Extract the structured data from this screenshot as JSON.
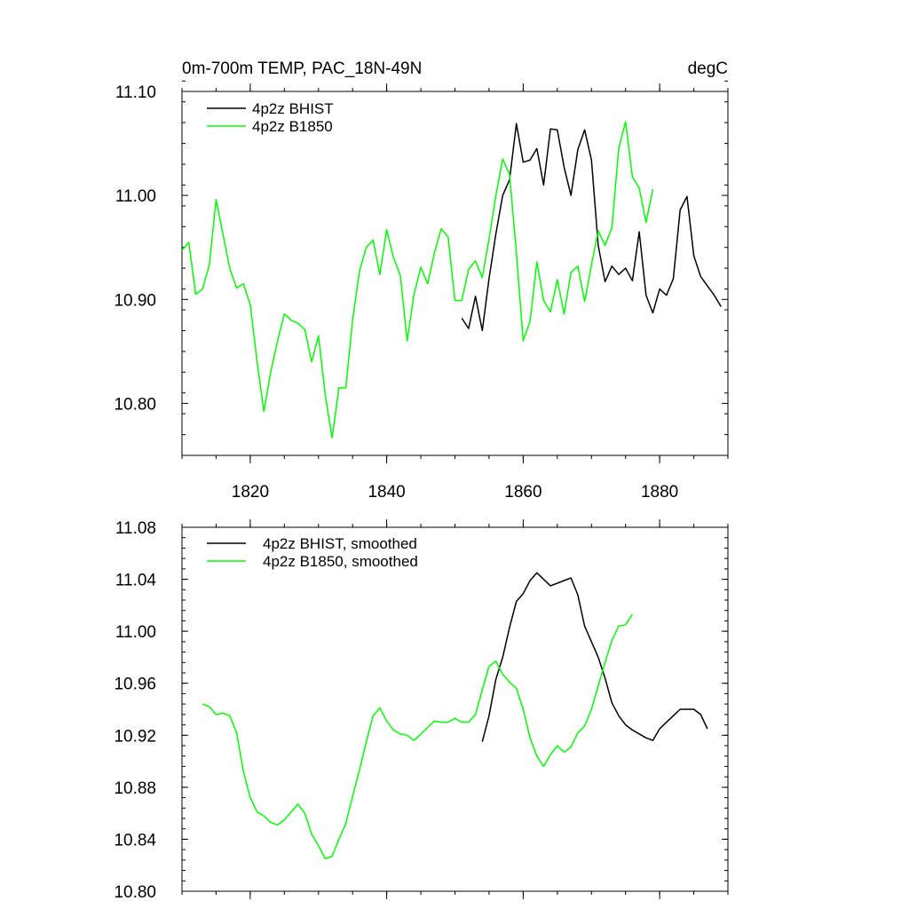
{
  "chart_data": [
    {
      "type": "line",
      "title_left": "0m-700m TEMP, PAC_18N-49N",
      "title_right": "degC",
      "xlim": [
        1810,
        1890
      ],
      "ylim": [
        10.75,
        11.1
      ],
      "y_tick_values": [
        10.8,
        10.9,
        11.0,
        11.1
      ],
      "y_tick_labels": [
        "10.80",
        "10.90",
        "11.00",
        "11.10"
      ],
      "x_tick_values": [
        1820,
        1840,
        1860,
        1880
      ],
      "x_tick_labels": [
        "1820",
        "1840",
        "1860",
        "1880"
      ],
      "legend": [
        "4p2z BHIST",
        "4p2z B1850"
      ],
      "series": [
        {
          "name": "4p2z BHIST",
          "color": "#000000",
          "x": [
            1851,
            1852,
            1853,
            1854,
            1855,
            1856,
            1857,
            1858,
            1859,
            1860,
            1861,
            1862,
            1863,
            1864,
            1865,
            1866,
            1867,
            1868,
            1869,
            1870,
            1871,
            1872,
            1873,
            1874,
            1875,
            1876,
            1877,
            1878,
            1879,
            1880,
            1881,
            1882,
            1883,
            1884,
            1885,
            1886,
            1887,
            1888,
            1889
          ],
          "values": [
            10.882,
            10.872,
            10.903,
            10.87,
            10.92,
            10.963,
            11.0,
            11.015,
            11.069,
            11.032,
            11.034,
            11.045,
            11.01,
            11.064,
            11.063,
            11.027,
            11.0,
            11.044,
            11.063,
            11.034,
            10.952,
            10.917,
            10.932,
            10.924,
            10.93,
            10.918,
            10.965,
            10.904,
            10.887,
            10.91,
            10.904,
            10.92,
            10.986,
            10.999,
            10.942,
            10.922,
            10.913,
            10.904,
            10.893
          ]
        },
        {
          "name": "4p2z B1850",
          "color": "#00ff00",
          "x": [
            1810,
            1811,
            1812,
            1813,
            1814,
            1815,
            1816,
            1817,
            1818,
            1819,
            1820,
            1821,
            1822,
            1823,
            1824,
            1825,
            1826,
            1827,
            1828,
            1829,
            1830,
            1831,
            1832,
            1833,
            1834,
            1835,
            1836,
            1837,
            1838,
            1839,
            1840,
            1841,
            1842,
            1843,
            1844,
            1845,
            1846,
            1847,
            1848,
            1849,
            1850,
            1851,
            1852,
            1853,
            1854,
            1855,
            1856,
            1857,
            1858,
            1859,
            1860,
            1861,
            1862,
            1863,
            1864,
            1865,
            1866,
            1867,
            1868,
            1869,
            1870,
            1871,
            1872,
            1873,
            1874,
            1875,
            1876,
            1877,
            1878,
            1879
          ],
          "values": [
            10.947,
            10.955,
            10.905,
            10.91,
            10.933,
            10.996,
            10.963,
            10.93,
            10.911,
            10.915,
            10.895,
            10.84,
            10.792,
            10.83,
            10.86,
            10.886,
            10.88,
            10.877,
            10.871,
            10.84,
            10.865,
            10.808,
            10.767,
            10.815,
            10.815,
            10.88,
            10.927,
            10.95,
            10.957,
            10.924,
            10.967,
            10.94,
            10.923,
            10.86,
            10.905,
            10.931,
            10.915,
            10.945,
            10.968,
            10.96,
            10.899,
            10.899,
            10.929,
            10.937,
            10.921,
            10.958,
            11.0,
            11.035,
            11.02,
            10.945,
            10.86,
            10.879,
            10.936,
            10.899,
            10.888,
            10.919,
            10.886,
            10.926,
            10.932,
            10.898,
            10.933,
            10.966,
            10.952,
            10.969,
            11.045,
            11.071,
            11.018,
            11.007,
            10.974,
            11.006
          ]
        }
      ]
    },
    {
      "type": "line",
      "xlim": [
        1810,
        1890
      ],
      "ylim": [
        10.8,
        11.08
      ],
      "y_tick_values": [
        10.8,
        10.84,
        10.88,
        10.92,
        10.96,
        11.0,
        11.04,
        11.08
      ],
      "y_tick_labels": [
        "10.80",
        "10.84",
        "10.88",
        "10.92",
        "10.96",
        "11.00",
        "11.04",
        "11.08"
      ],
      "x_tick_values": [
        1820,
        1840,
        1860,
        1880
      ],
      "legend": [
        "4p2z BHIST, smoothed",
        "4p2z B1850, smoothed"
      ],
      "series": [
        {
          "name": "4p2z BHIST, smoothed",
          "color": "#000000",
          "x": [
            1854,
            1855,
            1856,
            1857,
            1858,
            1859,
            1860,
            1861,
            1862,
            1863,
            1864,
            1865,
            1866,
            1867,
            1868,
            1869,
            1870,
            1871,
            1872,
            1873,
            1874,
            1875,
            1876,
            1877,
            1878,
            1879,
            1880,
            1881,
            1882,
            1883,
            1884,
            1885,
            1886,
            1887
          ],
          "values": [
            10.915,
            10.935,
            10.963,
            10.98,
            11.003,
            11.023,
            11.029,
            11.039,
            11.045,
            11.04,
            11.035,
            11.037,
            11.039,
            11.041,
            11.028,
            11.004,
            10.992,
            10.98,
            10.964,
            10.945,
            10.935,
            10.928,
            10.924,
            10.921,
            10.918,
            10.916,
            10.925,
            10.93,
            10.935,
            10.94,
            10.94,
            10.94,
            10.936,
            10.925
          ]
        },
        {
          "name": "4p2z B1850, smoothed",
          "color": "#00ff00",
          "x": [
            1813,
            1814,
            1815,
            1816,
            1817,
            1818,
            1819,
            1820,
            1821,
            1822,
            1823,
            1824,
            1825,
            1826,
            1827,
            1828,
            1829,
            1830,
            1831,
            1832,
            1833,
            1834,
            1835,
            1836,
            1837,
            1838,
            1839,
            1840,
            1841,
            1842,
            1843,
            1844,
            1845,
            1846,
            1847,
            1848,
            1849,
            1850,
            1851,
            1852,
            1853,
            1854,
            1855,
            1856,
            1857,
            1858,
            1859,
            1860,
            1861,
            1862,
            1863,
            1864,
            1865,
            1866,
            1867,
            1868,
            1869,
            1870,
            1871,
            1872,
            1873,
            1874,
            1875,
            1876
          ],
          "values": [
            10.944,
            10.942,
            10.936,
            10.937,
            10.935,
            10.922,
            10.892,
            10.872,
            10.861,
            10.858,
            10.853,
            10.851,
            10.855,
            10.861,
            10.867,
            10.86,
            10.844,
            10.835,
            10.825,
            10.827,
            10.84,
            10.852,
            10.873,
            10.893,
            10.915,
            10.935,
            10.941,
            10.931,
            10.924,
            10.921,
            10.92,
            10.916,
            10.921,
            10.926,
            10.931,
            10.93,
            10.93,
            10.933,
            10.93,
            10.93,
            10.936,
            10.955,
            10.973,
            10.977,
            10.967,
            10.961,
            10.956,
            10.94,
            10.918,
            10.904,
            10.896,
            10.905,
            10.912,
            10.907,
            10.911,
            10.922,
            10.927,
            10.94,
            10.958,
            10.976,
            10.993,
            11.004,
            11.005,
            11.013
          ]
        }
      ]
    }
  ]
}
